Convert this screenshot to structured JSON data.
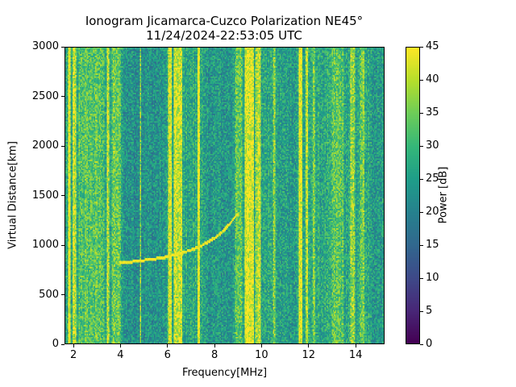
{
  "chart_data": {
    "type": "heatmap",
    "title": [
      "Ionogram Jicamarca-Cuzco Polarization NE45°",
      "11/24/2024-22:53:05 UTC"
    ],
    "xlabel": "Frequency[MHz]",
    "ylabel": "Virtual Distance[km]",
    "xlim": [
      1.62,
      15.23
    ],
    "ylim": [
      0,
      3000
    ],
    "xticks": [
      2,
      4,
      6,
      8,
      10,
      12,
      14
    ],
    "yticks": [
      0,
      500,
      1000,
      1500,
      2000,
      2500,
      3000
    ],
    "colorbar": {
      "label": "Power [dB]",
      "range": [
        0,
        45
      ],
      "ticks": [
        0,
        5,
        10,
        15,
        20,
        25,
        30,
        35,
        40,
        45
      ],
      "colormap": "viridis"
    },
    "background_level_dB": 27,
    "bright_bands_MHz": [
      [
        1.75,
        1.85,
        44
      ],
      [
        1.95,
        2.1,
        40
      ],
      [
        2.2,
        3.3,
        33
      ],
      [
        3.4,
        3.5,
        40
      ],
      [
        3.6,
        4.0,
        34
      ],
      [
        4.8,
        4.85,
        38
      ],
      [
        6.0,
        6.15,
        42
      ],
      [
        6.25,
        6.6,
        41
      ],
      [
        7.25,
        7.35,
        46
      ],
      [
        8.9,
        9.2,
        33
      ],
      [
        9.3,
        9.7,
        44
      ],
      [
        9.75,
        10.0,
        40
      ],
      [
        10.5,
        10.6,
        37
      ],
      [
        11.6,
        11.75,
        44
      ],
      [
        11.9,
        12.0,
        40
      ],
      [
        12.2,
        12.3,
        37
      ],
      [
        13.0,
        13.5,
        33
      ],
      [
        13.8,
        14.0,
        37
      ],
      [
        14.2,
        14.4,
        35
      ]
    ],
    "dim_bands_MHz": [
      [
        4.1,
        5.9,
        23
      ],
      [
        7.5,
        8.8,
        24
      ],
      [
        10.7,
        11.5,
        25
      ],
      [
        12.4,
        12.9,
        27
      ],
      [
        14.6,
        15.23,
        25
      ]
    ],
    "trace": {
      "x": [
        4.0,
        4.5,
        5.0,
        5.5,
        6.0,
        6.5,
        7.0,
        7.5,
        8.0,
        8.5,
        9.0
      ],
      "y": [
        830,
        840,
        855,
        870,
        890,
        920,
        960,
        1010,
        1080,
        1180,
        1320
      ],
      "power_dB": 44
    }
  }
}
